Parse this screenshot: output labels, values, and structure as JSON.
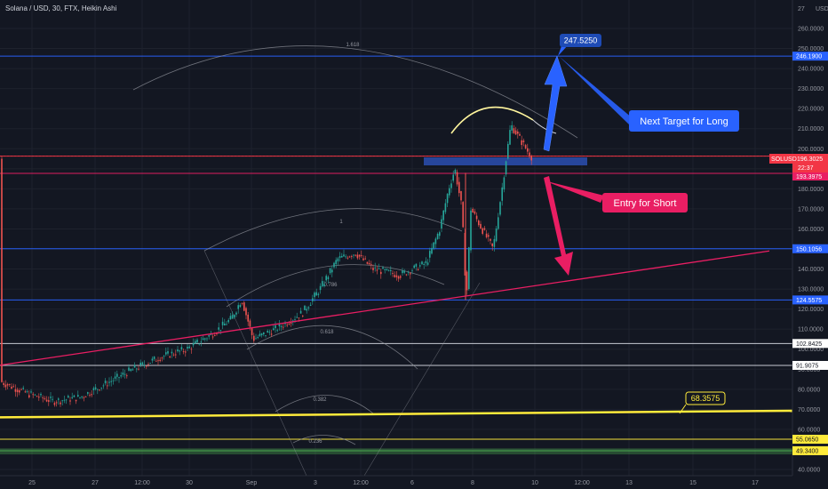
{
  "header": {
    "title": "Solana / USD, 30, FTX, Heikin Ashi",
    "currency": "USD",
    "top_tick": "27"
  },
  "price_axis": {
    "ticks": [
      "260.0000",
      "250.0000",
      "240.0000",
      "230.0000",
      "220.0000",
      "210.0000",
      "200.0000",
      "190.0000",
      "180.0000",
      "170.0000",
      "160.0000",
      "150.0000",
      "140.0000",
      "130.0000",
      "120.0000",
      "110.0000",
      "100.0000",
      "90.0000",
      "80.0000",
      "70.0000",
      "60.0000",
      "50.0000",
      "40.0000"
    ]
  },
  "time_axis": {
    "labels": [
      "25",
      "27",
      "12:00",
      "30",
      "Sep",
      "3",
      "12:00",
      "6",
      "8",
      "10",
      "12:00",
      "13",
      "15",
      "17"
    ]
  },
  "horizontal_levels": [
    {
      "price": 246.19,
      "label": "246.1900",
      "color": "#2962ff"
    },
    {
      "price": 196.3025,
      "label": "196.3025",
      "color": "#f23645"
    },
    {
      "price": 187.68,
      "label": "187.6800",
      "color": "#e91e63"
    },
    {
      "price": 150.1056,
      "label": "150.1056",
      "color": "#2962ff"
    },
    {
      "price": 124.5575,
      "label": "124.5575",
      "color": "#2962ff"
    },
    {
      "price": 102.8425,
      "label": "102.8425",
      "color": "#d1d4dc"
    },
    {
      "price": 91.9075,
      "label": "91.9075",
      "color": "#d1d4dc"
    },
    {
      "price": 55.065,
      "label": "55.0650",
      "color": "#ffeb3b"
    },
    {
      "price": 49.34,
      "label": "49.3400",
      "color": "#4caf50"
    }
  ],
  "last_price_box": {
    "symbol": "SOLUSD",
    "price": "196.3025",
    "countdown": "22:37",
    "secondary": "193.3975"
  },
  "fib_labels": [
    "1.618",
    "1",
    "0.786",
    "0.618",
    "0.382",
    "0.236"
  ],
  "annotations": {
    "target_price": "247.5250",
    "next_target_text": "Next Target for Long",
    "entry_text": "Entry for Short",
    "yellow_trend_value": "68.3575"
  },
  "colors": {
    "background": "#131722",
    "up_candle": "#26a69a",
    "down_candle": "#ef5350",
    "blue_arrow": "#2962ff",
    "pink_arrow": "#e91e63",
    "yellow_line": "#ffeb3b",
    "zone": "#2a4ba8"
  },
  "chart_data": {
    "type": "candlestick",
    "title": "Solana / USD, 30, FTX, Heikin Ashi",
    "ylim": [
      40,
      270
    ],
    "x_labels": [
      "25",
      "27",
      "12:00",
      "30",
      "Sep",
      "3",
      "12:00",
      "6",
      "8",
      "10",
      "12:00",
      "13",
      "15",
      "17"
    ],
    "series": [
      {
        "x": [
          "25",
          "27",
          "30",
          "Sep",
          "3",
          "6",
          "8",
          "10"
        ],
        "values": [
          80,
          75,
          95,
          115,
          130,
          145,
          185,
          196.3
        ]
      }
    ]
  }
}
